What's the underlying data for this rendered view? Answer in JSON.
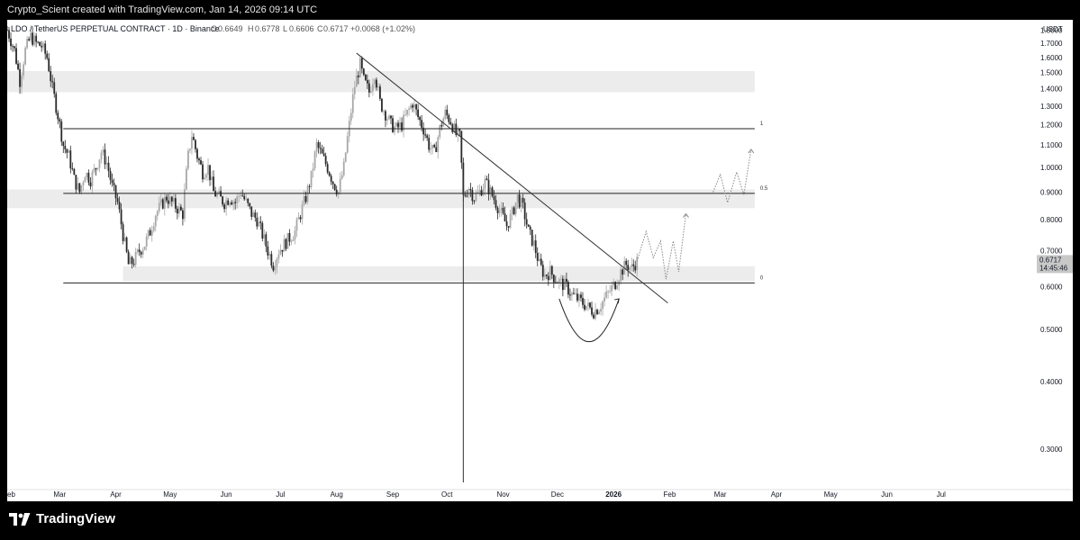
{
  "header": {
    "text": "Crypto_Scient created with TradingView.com, Jan 14, 2026 09:14 UTC"
  },
  "legend": {
    "symbol": "LDOUSDT",
    "title": "LDO / TetherUS PERPETUAL CONTRACT · 1D · Binance",
    "o_label": "O",
    "o": "0.6649",
    "h_label": "H",
    "h": "0.6778",
    "l_label": "L",
    "l": "0.6606",
    "c_label": "C",
    "c": "0.6717",
    "change": "+0.0068 (+1.02%)"
  },
  "footer": {
    "brand": "TradingView"
  },
  "chart_data": {
    "type": "candlestick",
    "currency": "USDT",
    "y_scale": "log",
    "ylim": [
      0.26,
      1.88
    ],
    "y_ticks": [
      1.8,
      1.7,
      1.6,
      1.5,
      1.4,
      1.3,
      1.2,
      1.1,
      1.0,
      0.9,
      0.8,
      0.7,
      0.6,
      0.5,
      0.4,
      0.3
    ],
    "y_tick_labels": [
      "1.8000",
      "1.7000",
      "1.6000",
      "1.5000",
      "1.4000",
      "1.3000",
      "1.2000",
      "1.1000",
      "1.0000",
      "0.9000",
      "0.8000",
      "0.7000",
      "0.6000",
      "0.5000",
      "0.4000",
      "0.3000"
    ],
    "x_range": [
      "2025-01-31",
      "2026-07-20"
    ],
    "x_ticks": [
      {
        "label": "Feb",
        "date": "2025-02-01"
      },
      {
        "label": "Mar",
        "date": "2025-03-01"
      },
      {
        "label": "Apr",
        "date": "2025-04-01"
      },
      {
        "label": "May",
        "date": "2025-05-01"
      },
      {
        "label": "Jun",
        "date": "2025-06-01"
      },
      {
        "label": "Jul",
        "date": "2025-07-01"
      },
      {
        "label": "Aug",
        "date": "2025-08-01"
      },
      {
        "label": "Sep",
        "date": "2025-09-01"
      },
      {
        "label": "Oct",
        "date": "2025-10-01"
      },
      {
        "label": "Nov",
        "date": "2025-11-01"
      },
      {
        "label": "Dec",
        "date": "2025-12-01"
      },
      {
        "label": "2026",
        "date": "2026-01-01"
      },
      {
        "label": "Feb",
        "date": "2026-02-01"
      },
      {
        "label": "Mar",
        "date": "2026-03-01"
      },
      {
        "label": "Apr",
        "date": "2026-04-01"
      },
      {
        "label": "May",
        "date": "2026-05-01"
      },
      {
        "label": "Jun",
        "date": "2026-06-01"
      },
      {
        "label": "Jul",
        "date": "2026-07-01"
      }
    ],
    "last_price": "0.6717",
    "countdown": "14:45:46",
    "price_path": [
      [
        "2025-01-31",
        1.8
      ],
      [
        "2025-02-04",
        1.65
      ],
      [
        "2025-02-07",
        1.45
      ],
      [
        "2025-02-10",
        1.65
      ],
      [
        "2025-02-13",
        1.75
      ],
      [
        "2025-02-16",
        1.7
      ],
      [
        "2025-02-19",
        1.68
      ],
      [
        "2025-02-22",
        1.6
      ],
      [
        "2025-02-25",
        1.4
      ],
      [
        "2025-02-28",
        1.25
      ],
      [
        "2025-03-03",
        1.1
      ],
      [
        "2025-03-06",
        1.05
      ],
      [
        "2025-03-09",
        0.95
      ],
      [
        "2025-03-12",
        0.9
      ],
      [
        "2025-03-15",
        0.98
      ],
      [
        "2025-03-18",
        0.95
      ],
      [
        "2025-03-21",
        1.0
      ],
      [
        "2025-03-24",
        1.07
      ],
      [
        "2025-03-27",
        1.02
      ],
      [
        "2025-03-30",
        0.92
      ],
      [
        "2025-04-02",
        0.86
      ],
      [
        "2025-04-05",
        0.75
      ],
      [
        "2025-04-08",
        0.66
      ],
      [
        "2025-04-11",
        0.67
      ],
      [
        "2025-04-14",
        0.7
      ],
      [
        "2025-04-17",
        0.72
      ],
      [
        "2025-04-20",
        0.76
      ],
      [
        "2025-04-23",
        0.82
      ],
      [
        "2025-04-26",
        0.85
      ],
      [
        "2025-04-29",
        0.88
      ],
      [
        "2025-05-02",
        0.86
      ],
      [
        "2025-05-05",
        0.84
      ],
      [
        "2025-05-08",
        0.82
      ],
      [
        "2025-05-11",
        1.05
      ],
      [
        "2025-05-13",
        1.15
      ],
      [
        "2025-05-16",
        1.05
      ],
      [
        "2025-05-19",
        0.98
      ],
      [
        "2025-05-22",
        1.0
      ],
      [
        "2025-05-25",
        0.9
      ],
      [
        "2025-05-28",
        0.88
      ],
      [
        "2025-05-31",
        0.86
      ],
      [
        "2025-06-03",
        0.88
      ],
      [
        "2025-06-06",
        0.86
      ],
      [
        "2025-06-09",
        0.9
      ],
      [
        "2025-06-12",
        0.86
      ],
      [
        "2025-06-15",
        0.82
      ],
      [
        "2025-06-18",
        0.8
      ],
      [
        "2025-06-21",
        0.75
      ],
      [
        "2025-06-24",
        0.7
      ],
      [
        "2025-06-27",
        0.66
      ],
      [
        "2025-06-30",
        0.7
      ],
      [
        "2025-07-03",
        0.72
      ],
      [
        "2025-07-06",
        0.74
      ],
      [
        "2025-07-09",
        0.76
      ],
      [
        "2025-07-12",
        0.82
      ],
      [
        "2025-07-15",
        0.88
      ],
      [
        "2025-07-18",
        0.96
      ],
      [
        "2025-07-21",
        1.1
      ],
      [
        "2025-07-24",
        1.05
      ],
      [
        "2025-07-27",
        1.0
      ],
      [
        "2025-07-30",
        0.94
      ],
      [
        "2025-08-02",
        0.9
      ],
      [
        "2025-08-05",
        1.0
      ],
      [
        "2025-08-08",
        1.2
      ],
      [
        "2025-08-11",
        1.42
      ],
      [
        "2025-08-14",
        1.55
      ],
      [
        "2025-08-16",
        1.45
      ],
      [
        "2025-08-19",
        1.38
      ],
      [
        "2025-08-22",
        1.5
      ],
      [
        "2025-08-25",
        1.32
      ],
      [
        "2025-08-28",
        1.26
      ],
      [
        "2025-08-31",
        1.2
      ],
      [
        "2025-09-03",
        1.18
      ],
      [
        "2025-09-06",
        1.2
      ],
      [
        "2025-09-09",
        1.26
      ],
      [
        "2025-09-12",
        1.32
      ],
      [
        "2025-09-15",
        1.24
      ],
      [
        "2025-09-18",
        1.18
      ],
      [
        "2025-09-21",
        1.1
      ],
      [
        "2025-09-24",
        1.06
      ],
      [
        "2025-09-27",
        1.18
      ],
      [
        "2025-09-30",
        1.26
      ],
      [
        "2025-10-03",
        1.22
      ],
      [
        "2025-10-06",
        1.15
      ],
      [
        "2025-10-08",
        1.14
      ],
      [
        "2025-10-10",
        0.88
      ],
      [
        "2025-10-13",
        0.92
      ],
      [
        "2025-10-16",
        0.88
      ],
      [
        "2025-10-19",
        0.9
      ],
      [
        "2025-10-22",
        0.94
      ],
      [
        "2025-10-25",
        0.9
      ],
      [
        "2025-10-28",
        0.86
      ],
      [
        "2025-10-31",
        0.82
      ],
      [
        "2025-11-03",
        0.78
      ],
      [
        "2025-11-06",
        0.82
      ],
      [
        "2025-11-09",
        0.88
      ],
      [
        "2025-11-12",
        0.84
      ],
      [
        "2025-11-15",
        0.76
      ],
      [
        "2025-11-18",
        0.72
      ],
      [
        "2025-11-21",
        0.66
      ],
      [
        "2025-11-24",
        0.63
      ],
      [
        "2025-11-27",
        0.64
      ],
      [
        "2025-11-30",
        0.62
      ],
      [
        "2025-12-03",
        0.61
      ],
      [
        "2025-12-06",
        0.6
      ],
      [
        "2025-12-09",
        0.58
      ],
      [
        "2025-12-12",
        0.57
      ],
      [
        "2025-12-15",
        0.56
      ],
      [
        "2025-12-18",
        0.55
      ],
      [
        "2025-12-21",
        0.54
      ],
      [
        "2025-12-24",
        0.55
      ],
      [
        "2025-12-27",
        0.57
      ],
      [
        "2025-12-30",
        0.59
      ],
      [
        "2026-01-02",
        0.61
      ],
      [
        "2026-01-05",
        0.64
      ],
      [
        "2026-01-08",
        0.66
      ],
      [
        "2026-01-11",
        0.65
      ],
      [
        "2026-01-14",
        0.67
      ]
    ],
    "zones": [
      {
        "y1": 1.38,
        "y2": 1.51,
        "x1": "2025-01-31",
        "x2": "2026-03-20"
      },
      {
        "y1": 0.84,
        "y2": 0.91,
        "x1": "2025-01-31",
        "x2": "2026-03-20"
      },
      {
        "y1": 0.615,
        "y2": 0.655,
        "x1": "2025-04-05",
        "x2": "2026-03-20"
      }
    ],
    "horizontal_lines": [
      {
        "y": 1.18,
        "x1": "2025-03-03",
        "x2": "2026-03-20",
        "label": "1"
      },
      {
        "y": 0.895,
        "x1": "2025-03-03",
        "x2": "2026-03-20",
        "label": "0.5"
      },
      {
        "y": 0.61,
        "x1": "2025-03-03",
        "x2": "2026-03-20",
        "label": "0"
      }
    ],
    "trendline": {
      "from": [
        "2025-08-12",
        1.63
      ],
      "to": [
        "2026-01-31",
        0.56
      ]
    },
    "vertical_line": {
      "x": "2025-10-10",
      "y1": 0.26,
      "y2": 0.96
    },
    "projection_1": [
      [
        "2026-01-14",
        0.67
      ],
      [
        "2026-01-19",
        0.76
      ],
      [
        "2026-01-23",
        0.68
      ],
      [
        "2026-01-27",
        0.73
      ],
      [
        "2026-01-30",
        0.62
      ],
      [
        "2026-02-03",
        0.73
      ],
      [
        "2026-02-06",
        0.64
      ],
      [
        "2026-02-10",
        0.82
      ]
    ],
    "projection_2": [
      [
        "2026-02-25",
        0.9
      ],
      [
        "2026-03-01",
        0.97
      ],
      [
        "2026-03-05",
        0.86
      ],
      [
        "2026-03-10",
        0.98
      ],
      [
        "2026-03-14",
        0.89
      ],
      [
        "2026-03-18",
        1.08
      ]
    ],
    "rounding_arc": {
      "from": [
        "2025-12-02",
        0.57
      ],
      "to": [
        "2026-01-04",
        0.57
      ],
      "bottom": 0.47
    }
  }
}
